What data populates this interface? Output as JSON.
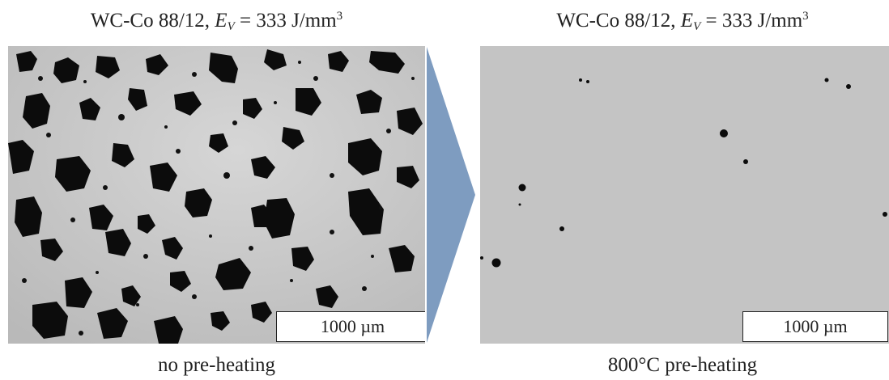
{
  "left_panel": {
    "title_prefix": "WC-Co 88/12, ",
    "title_var": "E",
    "title_sub": "V",
    "title_eq": " = 333 J/mm",
    "title_sup": "3",
    "scale_label": "1000 µm",
    "caption": "no pre-heating"
  },
  "right_panel": {
    "title_prefix": "WC-Co 88/12, ",
    "title_var": "E",
    "title_sub": "V",
    "title_eq": " = 333 J/mm",
    "title_sup": "3",
    "scale_label": "1000 µm",
    "caption": "800°C pre-heating"
  },
  "colors": {
    "arrow": "#7e9cc0",
    "micrograph_left_bg": "#c9c9c9",
    "micrograph_right_bg": "#c4c4c4",
    "pores": "#0c0c0c"
  }
}
